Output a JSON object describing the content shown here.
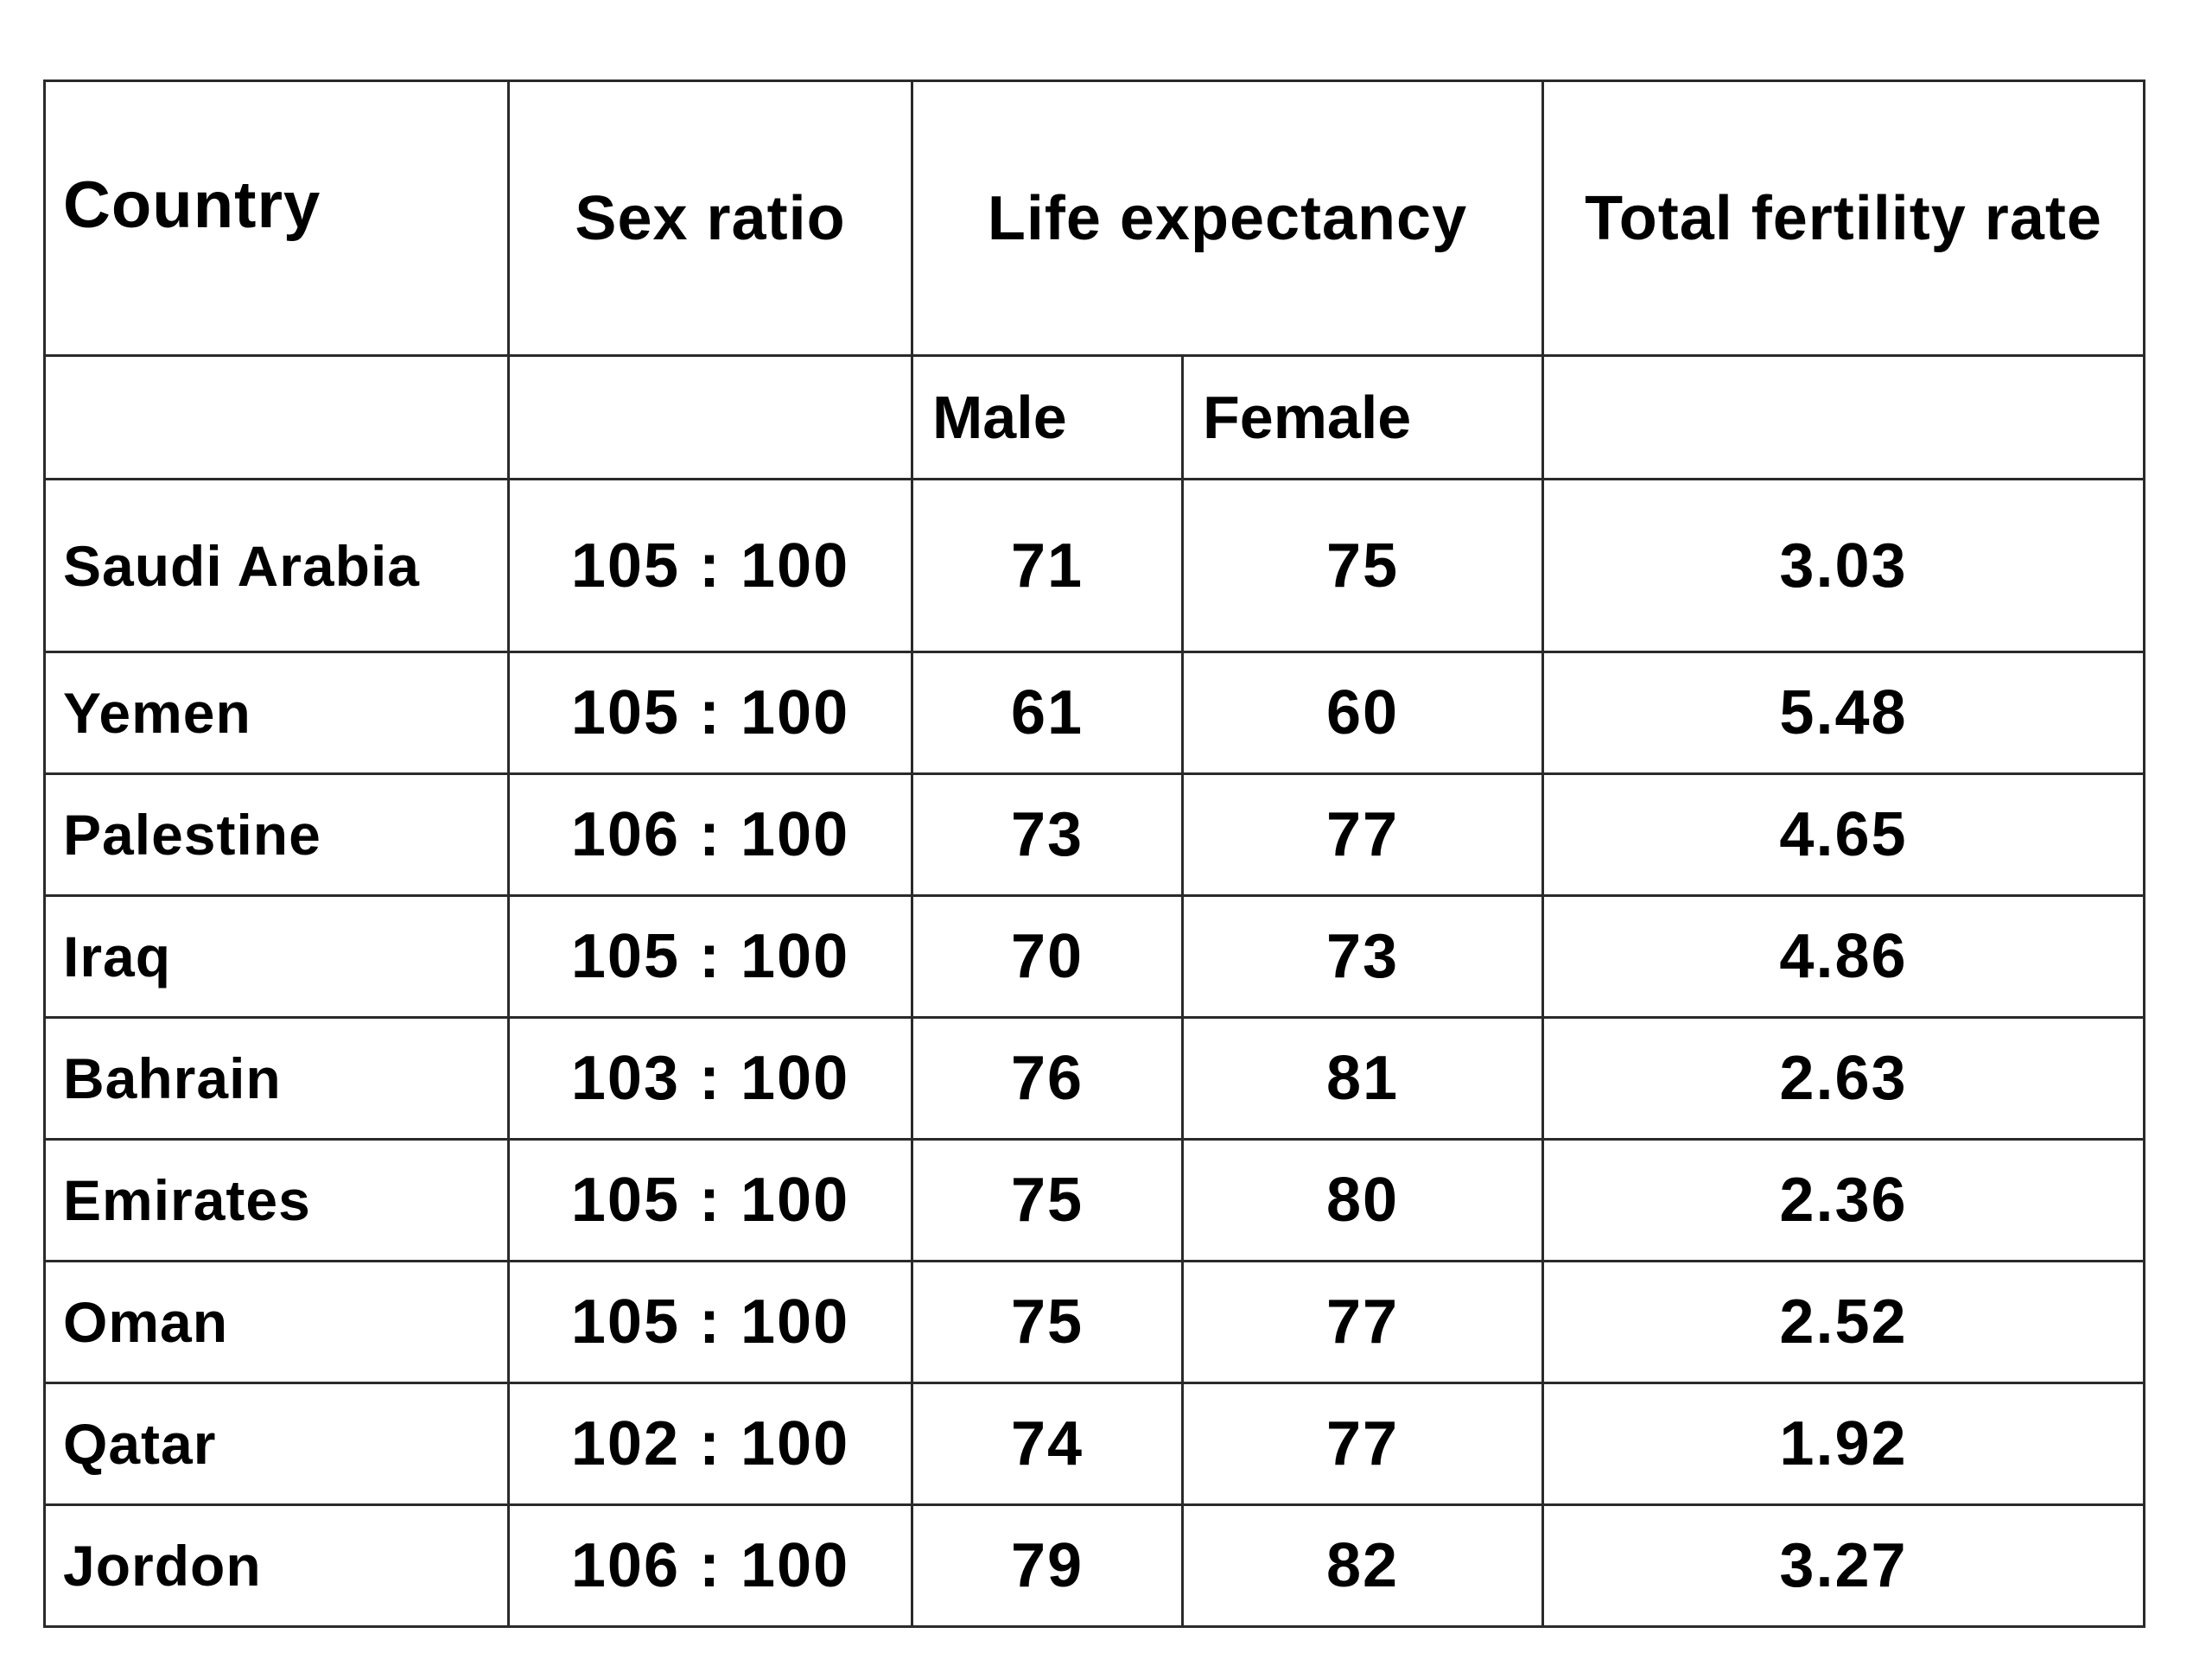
{
  "table": {
    "headers": {
      "country": "Country",
      "sex_ratio": "Sex ratio",
      "life_expectancy": "Life expectancy",
      "total_fertility_rate": "Total fertility rate"
    },
    "subheaders": {
      "male": "Male",
      "female": "Female"
    },
    "rows": [
      {
        "country": "Saudi Arabia",
        "sex_ratio": "105 : 100",
        "male": "71",
        "female": "75",
        "tfr": "3.03"
      },
      {
        "country": "Yemen",
        "sex_ratio": "105 : 100",
        "male": "61",
        "female": "60",
        "tfr": "5.48"
      },
      {
        "country": "Palestine",
        "sex_ratio": "106 : 100",
        "male": "73",
        "female": "77",
        "tfr": "4.65"
      },
      {
        "country": "Iraq",
        "sex_ratio": "105 : 100",
        "male": "70",
        "female": "73",
        "tfr": "4.86"
      },
      {
        "country": "Bahrain",
        "sex_ratio": "103 : 100",
        "male": "76",
        "female": "81",
        "tfr": "2.63"
      },
      {
        "country": "Emirates",
        "sex_ratio": "105 : 100",
        "male": "75",
        "female": "80",
        "tfr": "2.36"
      },
      {
        "country": "Oman",
        "sex_ratio": "105 : 100",
        "male": "75",
        "female": "77",
        "tfr": "2.52"
      },
      {
        "country": "Qatar",
        "sex_ratio": "102 : 100",
        "male": "74",
        "female": "77",
        "tfr": "1.92"
      },
      {
        "country": "Jordon",
        "sex_ratio": "106 : 100",
        "male": "79",
        "female": "82",
        "tfr": "3.27"
      }
    ]
  }
}
